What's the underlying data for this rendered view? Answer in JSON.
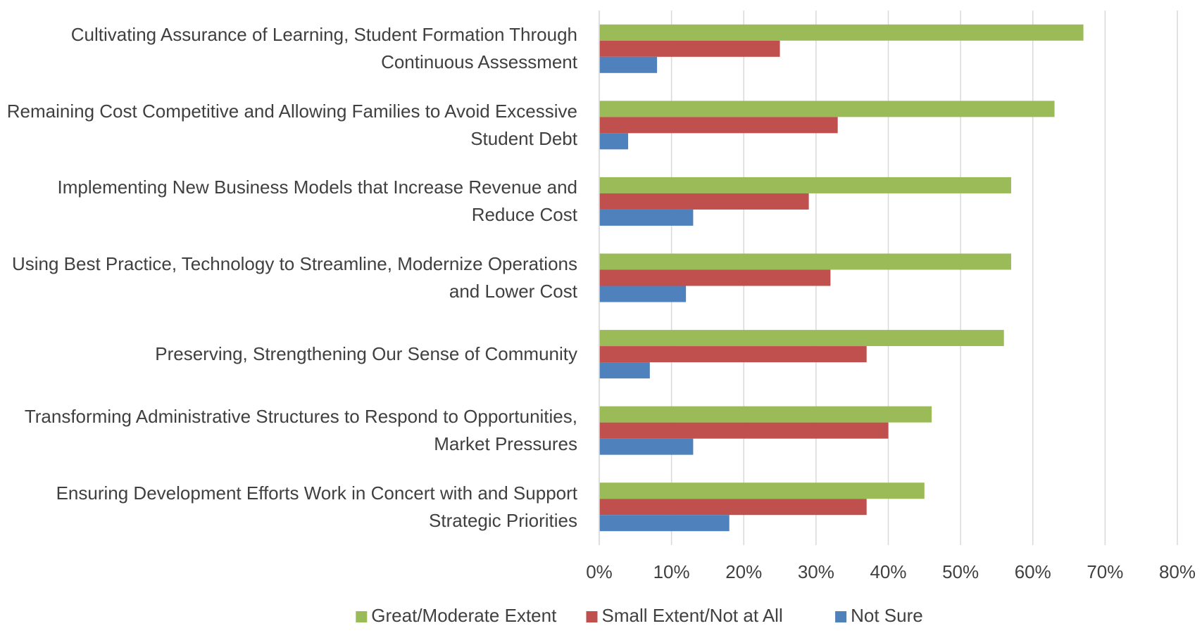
{
  "chart_data": {
    "type": "hbar",
    "categories": [
      "Cultivating Assurance of Learning, Student Formation Through Continuous Assessment",
      "Remaining Cost Competitive and Allowing Families to Avoid Excessive Student Debt",
      "Implementing New Business Models that Increase Revenue and Reduce Cost",
      "Using Best Practice, Technology to Streamline, Modernize Operations and Lower Cost",
      "Preserving, Strengthening Our Sense of Community",
      "Transforming Administrative Structures to Respond to Opportunities, Market Pressures",
      "Ensuring Development Efforts Work in Concert with and Support Strategic Priorities"
    ],
    "series": [
      {
        "name": "Great/Moderate Extent",
        "color": "#9bbb59",
        "values": [
          67,
          63,
          57,
          57,
          56,
          46,
          45
        ]
      },
      {
        "name": "Small Extent/Not at All",
        "color": "#c0504d",
        "values": [
          25,
          33,
          29,
          32,
          37,
          40,
          37
        ]
      },
      {
        "name": "Not Sure",
        "color": "#4f81bd",
        "values": [
          8,
          4,
          13,
          12,
          7,
          13,
          18
        ]
      }
    ],
    "xlim": [
      0,
      80
    ],
    "xticks": [
      {
        "value": 0,
        "label": "0%"
      },
      {
        "value": 10,
        "label": "10%"
      },
      {
        "value": 20,
        "label": "20%"
      },
      {
        "value": 30,
        "label": "30%"
      },
      {
        "value": 40,
        "label": "40%"
      },
      {
        "value": 50,
        "label": "50%"
      },
      {
        "value": 60,
        "label": "60%"
      },
      {
        "value": 70,
        "label": "70%"
      },
      {
        "value": 80,
        "label": "80%"
      }
    ],
    "grid": true,
    "legend": "bottom"
  }
}
